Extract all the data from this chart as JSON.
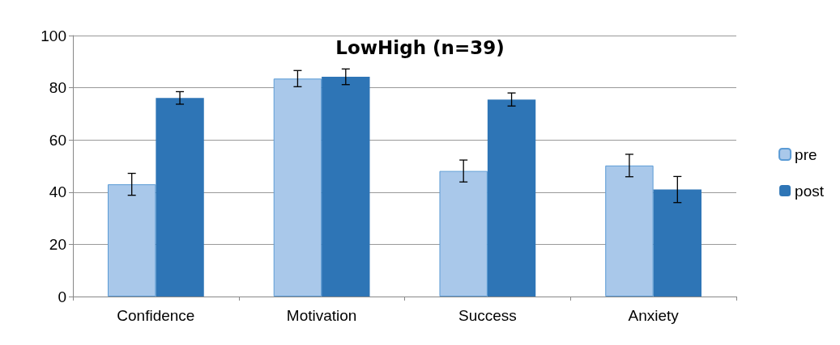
{
  "chart_data": {
    "type": "bar",
    "title": "LowHigh (n=39)",
    "categories": [
      "Confidence",
      "Motivation",
      "Success",
      "Anxiety"
    ],
    "series": [
      {
        "name": "pre",
        "color": "#a9c8ea",
        "values": [
          43.0,
          83.5,
          48.1,
          50.2
        ],
        "errors": [
          4.2,
          3.1,
          4.2,
          4.3
        ]
      },
      {
        "name": "post",
        "color": "#2e75b6",
        "values": [
          76.1,
          84.2,
          75.5,
          41.0
        ],
        "errors": [
          2.4,
          3.0,
          2.5,
          5.0
        ]
      }
    ],
    "ylim": [
      0,
      100
    ],
    "yticks": [
      0,
      20,
      40,
      60,
      80,
      100
    ],
    "grid": "y",
    "legend": "right"
  }
}
